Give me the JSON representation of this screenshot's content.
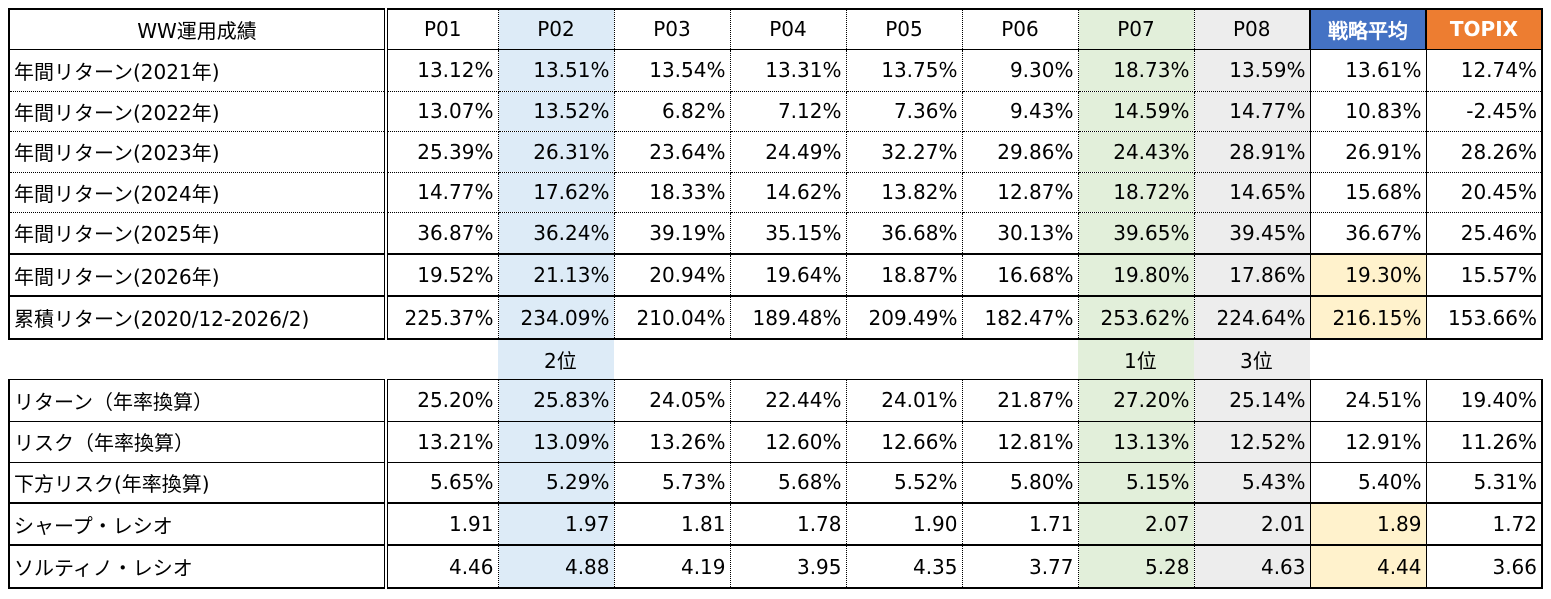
{
  "table": {
    "header": [
      "WW運用成績",
      "P01",
      "P02",
      "P03",
      "P04",
      "P05",
      "P06",
      "P07",
      "P08",
      "戦略平均",
      "TOPIX"
    ],
    "rows": [
      [
        "年間リターン(2021年)",
        "13.12%",
        "13.51%",
        "13.54%",
        "13.31%",
        "13.75%",
        "9.30%",
        "18.73%",
        "13.59%",
        "13.61%",
        "12.74%"
      ],
      [
        "年間リターン(2022年)",
        "13.07%",
        "13.52%",
        "6.82%",
        "7.12%",
        "7.36%",
        "9.43%",
        "14.59%",
        "14.77%",
        "10.83%",
        "-2.45%"
      ],
      [
        "年間リターン(2023年)",
        "25.39%",
        "26.31%",
        "23.64%",
        "24.49%",
        "32.27%",
        "29.86%",
        "24.43%",
        "28.91%",
        "26.91%",
        "28.26%"
      ],
      [
        "年間リターン(2024年)",
        "14.77%",
        "17.62%",
        "18.33%",
        "14.62%",
        "13.82%",
        "12.87%",
        "18.72%",
        "14.65%",
        "15.68%",
        "20.45%"
      ],
      [
        "年間リターン(2025年)",
        "36.87%",
        "36.24%",
        "39.19%",
        "35.15%",
        "36.68%",
        "30.13%",
        "39.65%",
        "39.45%",
        "36.67%",
        "25.46%"
      ],
      [
        "年間リターン(2026年)",
        "19.52%",
        "21.13%",
        "20.94%",
        "19.64%",
        "18.87%",
        "16.68%",
        "19.80%",
        "17.86%",
        "19.30%",
        "15.57%"
      ],
      [
        "累積リターン(2020/12-2026/2)",
        "225.37%",
        "234.09%",
        "210.04%",
        "189.48%",
        "209.49%",
        "182.47%",
        "253.62%",
        "224.64%",
        "216.15%",
        "153.66%"
      ]
    ],
    "rank_row": [
      null,
      null,
      "2位",
      null,
      null,
      null,
      null,
      "1位",
      "3位",
      null,
      null
    ],
    "bottom_rows": [
      [
        "リターン（年率換算）",
        "25.20%",
        "25.83%",
        "24.05%",
        "22.44%",
        "24.01%",
        "21.87%",
        "27.20%",
        "25.14%",
        "24.51%",
        "19.40%"
      ],
      [
        "リスク（年率換算）",
        "13.21%",
        "13.09%",
        "13.26%",
        "12.60%",
        "12.66%",
        "12.81%",
        "13.13%",
        "12.52%",
        "12.91%",
        "11.26%"
      ],
      [
        "下方リスク(年率換算)",
        "5.65%",
        "5.29%",
        "5.73%",
        "5.68%",
        "5.52%",
        "5.80%",
        "5.15%",
        "5.43%",
        "5.40%",
        "5.31%"
      ],
      [
        "シャープ・レシオ",
        "1.91",
        "1.97",
        "1.81",
        "1.78",
        "1.90",
        "1.71",
        "2.07",
        "2.01",
        "1.89",
        "1.72"
      ],
      [
        "ソルティノ・レシオ",
        "4.46",
        "4.88",
        "4.19",
        "3.95",
        "4.35",
        "3.77",
        "5.28",
        "4.63",
        "4.44",
        "3.66"
      ]
    ]
  }
}
